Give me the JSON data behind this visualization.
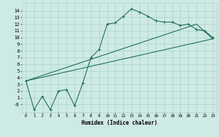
{
  "xlabel": "Humidex (Indice chaleur)",
  "bg_color": "#ceeae4",
  "grid_color": "#b0d4cc",
  "line_color": "#1a6b5a",
  "xlim": [
    -0.5,
    23.5
  ],
  "ylim": [
    -1.2,
    15.2
  ],
  "xticks": [
    0,
    1,
    2,
    3,
    4,
    5,
    6,
    7,
    8,
    9,
    10,
    11,
    12,
    13,
    14,
    15,
    16,
    17,
    18,
    19,
    20,
    21,
    22,
    23
  ],
  "yticks": [
    0,
    1,
    2,
    3,
    4,
    5,
    6,
    7,
    8,
    9,
    10,
    11,
    12,
    13,
    14
  ],
  "ytick_labels": [
    "-0",
    "1",
    "2",
    "3",
    "4",
    "5",
    "6",
    "7",
    "8",
    "9",
    "10",
    "11",
    "12",
    "13",
    "14"
  ],
  "main_line_x": [
    0,
    1,
    2,
    3,
    4,
    5,
    6,
    7,
    8,
    9,
    10,
    11,
    12,
    13,
    14,
    15,
    16,
    17,
    18,
    19,
    20,
    21,
    22,
    23
  ],
  "main_line_y": [
    3.5,
    -0.8,
    1.2,
    -0.8,
    2.0,
    2.2,
    -0.2,
    3.2,
    7.0,
    8.2,
    12.0,
    12.2,
    13.2,
    14.3,
    13.8,
    13.2,
    12.5,
    12.3,
    12.3,
    11.8,
    12.0,
    11.2,
    11.0,
    10.0
  ],
  "line2_x": [
    0,
    23
  ],
  "line2_y": [
    3.5,
    9.8
  ],
  "line3_x": [
    0,
    21,
    23
  ],
  "line3_y": [
    3.5,
    12.0,
    9.8
  ],
  "marker_indices": [
    0,
    1,
    2,
    3,
    4,
    5,
    6,
    7,
    8,
    9,
    10,
    11,
    12,
    13,
    14,
    15,
    16,
    17,
    18,
    19,
    20,
    21,
    22,
    23
  ]
}
